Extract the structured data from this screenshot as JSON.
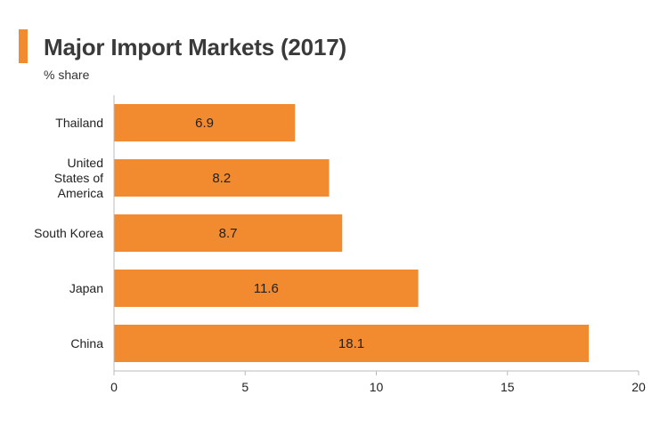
{
  "header": {
    "title": "Major Import Markets (2017)",
    "subtitle": "% share"
  },
  "colors": {
    "accent": "#f28a30",
    "bar": "#f28a30",
    "axis": "#bbbbbb"
  },
  "chart_data": {
    "type": "bar",
    "orientation": "horizontal",
    "title": "Major Import Markets (2017)",
    "subtitle": "% share",
    "categories": [
      [
        "Thailand"
      ],
      [
        "United",
        "States of",
        "America"
      ],
      [
        "South Korea"
      ],
      [
        "Japan"
      ],
      [
        "China"
      ]
    ],
    "values": [
      6.9,
      8.2,
      8.7,
      11.6,
      18.1
    ],
    "data_labels": [
      "6.9",
      "8.2",
      "8.7",
      "11.6",
      "18.1"
    ],
    "xlim": [
      0,
      20
    ],
    "xticks": [
      0,
      5,
      10,
      15,
      20
    ],
    "xlabel": "",
    "ylabel": "",
    "grid": false,
    "legend": "none"
  }
}
